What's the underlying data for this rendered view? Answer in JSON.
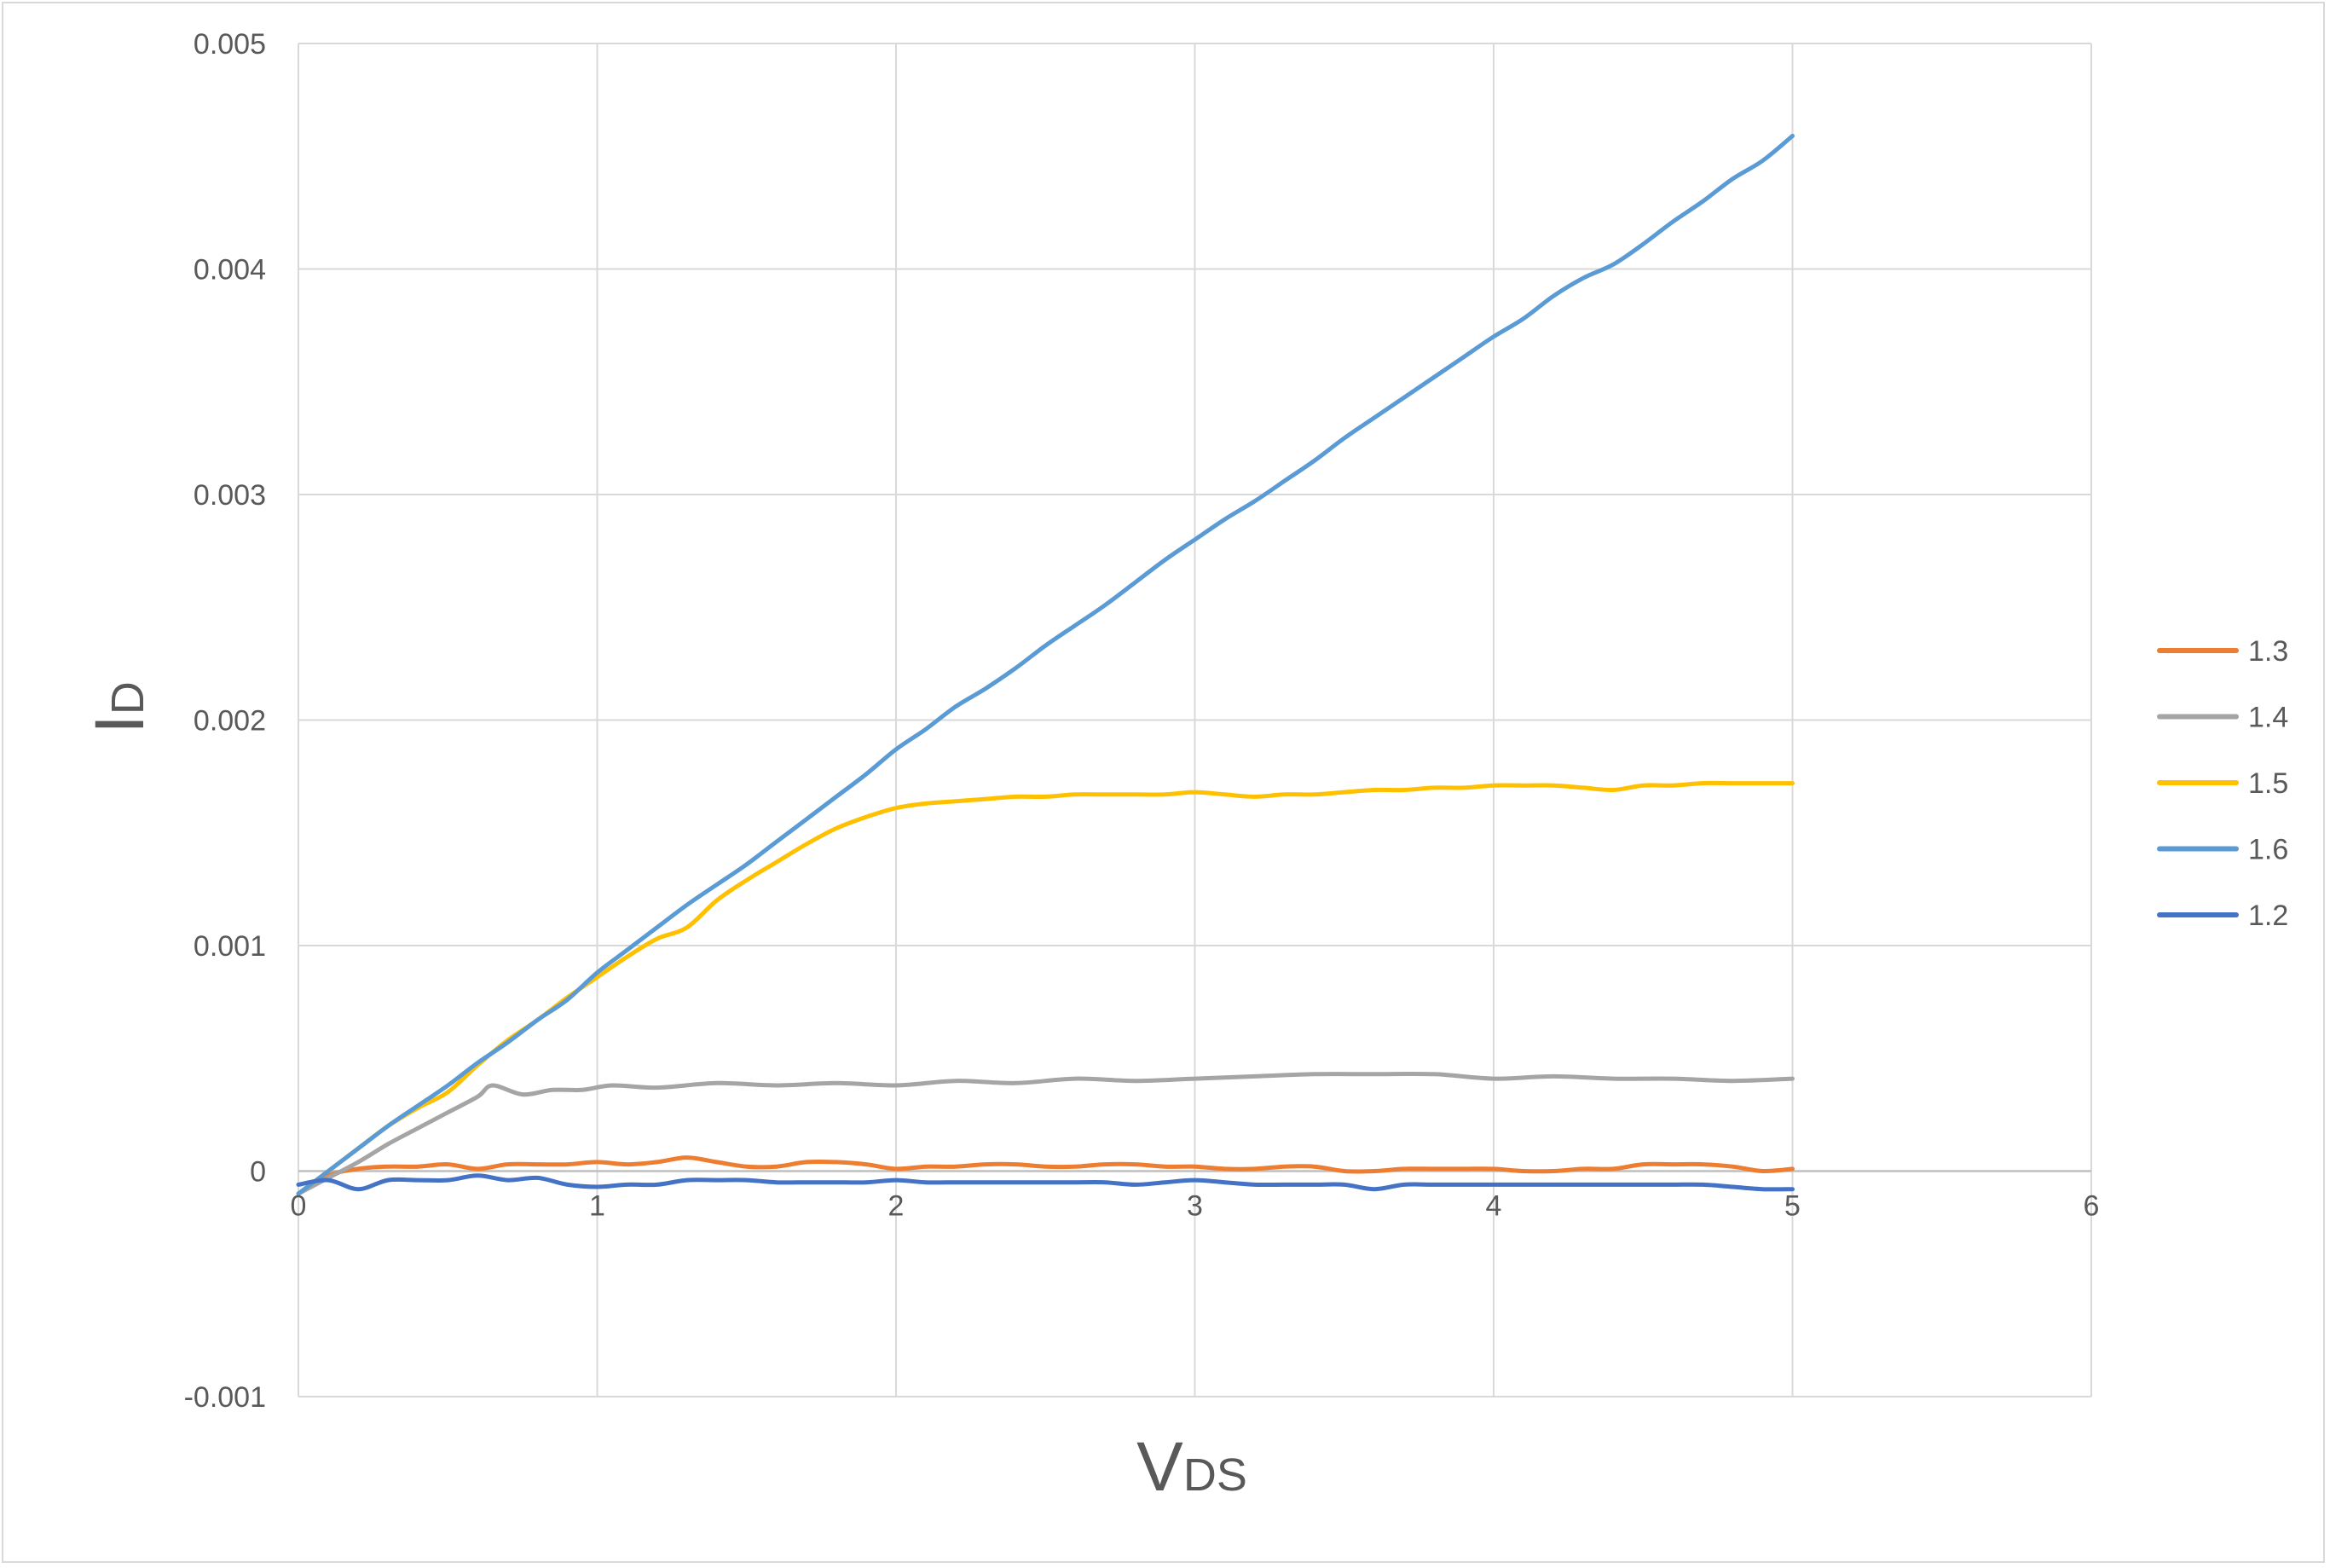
{
  "chart_data": {
    "type": "line",
    "title": "",
    "xlabel": {
      "main": "V",
      "sub": "DS"
    },
    "ylabel": {
      "main": "I",
      "sub": "D"
    },
    "xlim": [
      0,
      6
    ],
    "ylim": [
      -0.001,
      0.005
    ],
    "x_ticks": [
      "0",
      "1",
      "2",
      "3",
      "4",
      "5",
      "6"
    ],
    "y_ticks": [
      "-0.001",
      "0",
      "0.001",
      "0.002",
      "0.003",
      "0.004",
      "0.005"
    ],
    "grid": true,
    "legend_position": "right",
    "series": [
      {
        "name": "1.3",
        "color": "#ED7D31",
        "x": [
          0,
          0.1,
          0.2,
          0.3,
          0.4,
          0.5,
          0.6,
          0.7,
          0.8,
          0.9,
          1.0,
          1.1,
          1.2,
          1.3,
          1.4,
          1.5,
          1.6,
          1.7,
          1.8,
          1.9,
          2.0,
          2.1,
          2.2,
          2.3,
          2.4,
          2.5,
          2.6,
          2.7,
          2.8,
          2.9,
          3.0,
          3.1,
          3.2,
          3.3,
          3.4,
          3.5,
          3.6,
          3.7,
          3.8,
          3.9,
          4.0,
          4.1,
          4.2,
          4.3,
          4.4,
          4.5,
          4.6,
          4.7,
          4.8,
          4.9,
          5.0
        ],
        "y": [
          -0.0001,
          -2e-05,
          1e-05,
          2e-05,
          2e-05,
          3e-05,
          1e-05,
          3e-05,
          3e-05,
          3e-05,
          4e-05,
          3e-05,
          4e-05,
          6e-05,
          4e-05,
          2e-05,
          2e-05,
          4e-05,
          4e-05,
          3e-05,
          1e-05,
          2e-05,
          2e-05,
          3e-05,
          3e-05,
          2e-05,
          2e-05,
          3e-05,
          3e-05,
          2e-05,
          2e-05,
          1e-05,
          1e-05,
          2e-05,
          2e-05,
          0.0,
          0.0,
          1e-05,
          1e-05,
          1e-05,
          1e-05,
          0.0,
          0.0,
          1e-05,
          1e-05,
          3e-05,
          3e-05,
          3e-05,
          2e-05,
          0.0,
          1e-05
        ]
      },
      {
        "name": "1.4",
        "color": "#A5A5A5",
        "x": [
          0,
          0.1,
          0.2,
          0.3,
          0.4,
          0.5,
          0.6,
          0.65,
          0.75,
          0.85,
          0.95,
          1.05,
          1.2,
          1.4,
          1.6,
          1.8,
          2.0,
          2.2,
          2.4,
          2.6,
          2.8,
          3.0,
          3.2,
          3.4,
          3.6,
          3.8,
          4.0,
          4.2,
          4.4,
          4.6,
          4.8,
          5.0
        ],
        "y": [
          -0.0001,
          -3e-05,
          4e-05,
          0.00012,
          0.00019,
          0.00026,
          0.00033,
          0.00038,
          0.00034,
          0.00036,
          0.00036,
          0.00038,
          0.00037,
          0.00039,
          0.00038,
          0.00039,
          0.00038,
          0.0004,
          0.00039,
          0.00041,
          0.0004,
          0.00041,
          0.00042,
          0.00043,
          0.00043,
          0.00043,
          0.00041,
          0.00042,
          0.00041,
          0.00041,
          0.0004,
          0.00041
        ]
      },
      {
        "name": "1.5",
        "color": "#FFC000",
        "x": [
          0,
          0.1,
          0.2,
          0.3,
          0.4,
          0.5,
          0.6,
          0.7,
          0.8,
          0.9,
          1.0,
          1.1,
          1.2,
          1.3,
          1.4,
          1.5,
          1.6,
          1.7,
          1.8,
          1.9,
          2.0,
          2.1,
          2.2,
          2.3,
          2.4,
          2.5,
          2.6,
          2.7,
          2.8,
          2.9,
          3.0,
          3.1,
          3.2,
          3.3,
          3.4,
          3.5,
          3.6,
          3.7,
          3.8,
          3.9,
          4.0,
          4.1,
          4.2,
          4.3,
          4.4,
          4.5,
          4.6,
          4.7,
          4.8,
          4.9,
          5.0
        ],
        "y": [
          -0.0001,
          0.0,
          0.0001,
          0.0002,
          0.00028,
          0.00035,
          0.00047,
          0.00058,
          0.00067,
          0.00077,
          0.00086,
          0.00095,
          0.00103,
          0.00108,
          0.0012,
          0.00129,
          0.00137,
          0.00145,
          0.00152,
          0.00157,
          0.00161,
          0.00163,
          0.00164,
          0.00165,
          0.00166,
          0.00166,
          0.00167,
          0.00167,
          0.00167,
          0.00167,
          0.00168,
          0.00167,
          0.00166,
          0.00167,
          0.00167,
          0.00168,
          0.00169,
          0.00169,
          0.0017,
          0.0017,
          0.00171,
          0.00171,
          0.00171,
          0.0017,
          0.00169,
          0.00171,
          0.00171,
          0.00172,
          0.00172,
          0.00172,
          0.00172
        ]
      },
      {
        "name": "1.6",
        "color": "#5B9BD5",
        "x": [
          0,
          0.1,
          0.2,
          0.3,
          0.4,
          0.5,
          0.6,
          0.7,
          0.8,
          0.9,
          1.0,
          1.1,
          1.2,
          1.3,
          1.4,
          1.5,
          1.6,
          1.7,
          1.8,
          1.9,
          2.0,
          2.1,
          2.2,
          2.3,
          2.4,
          2.5,
          2.6,
          2.7,
          2.8,
          2.9,
          3.0,
          3.1,
          3.2,
          3.3,
          3.4,
          3.5,
          3.6,
          3.7,
          3.8,
          3.9,
          4.0,
          4.1,
          4.2,
          4.3,
          4.4,
          4.5,
          4.6,
          4.7,
          4.8,
          4.9,
          5.0
        ],
        "y": [
          -0.0001,
          0.0,
          0.0001,
          0.0002,
          0.00029,
          0.00038,
          0.00048,
          0.00057,
          0.00067,
          0.00076,
          0.00088,
          0.00098,
          0.00108,
          0.00118,
          0.00127,
          0.00136,
          0.00146,
          0.00156,
          0.00166,
          0.00176,
          0.00187,
          0.00196,
          0.00206,
          0.00214,
          0.00223,
          0.00233,
          0.00242,
          0.00251,
          0.00261,
          0.00271,
          0.0028,
          0.00289,
          0.00297,
          0.00306,
          0.00315,
          0.00325,
          0.00334,
          0.00343,
          0.00352,
          0.00361,
          0.0037,
          0.00378,
          0.00388,
          0.00396,
          0.00402,
          0.00411,
          0.00421,
          0.0043,
          0.0044,
          0.00448,
          0.00459
        ]
      },
      {
        "name": "1.2",
        "color": "#4472C4",
        "x": [
          0,
          0.1,
          0.2,
          0.3,
          0.4,
          0.5,
          0.6,
          0.7,
          0.8,
          0.9,
          1.0,
          1.1,
          1.2,
          1.3,
          1.4,
          1.5,
          1.6,
          1.7,
          1.8,
          1.9,
          2.0,
          2.1,
          2.2,
          2.3,
          2.4,
          2.5,
          2.6,
          2.7,
          2.8,
          2.9,
          3.0,
          3.1,
          3.2,
          3.3,
          3.4,
          3.5,
          3.6,
          3.7,
          3.8,
          3.9,
          4.0,
          4.1,
          4.2,
          4.3,
          4.4,
          4.5,
          4.6,
          4.7,
          4.8,
          4.9,
          5.0
        ],
        "y": [
          -6e-05,
          -4e-05,
          -8e-05,
          -4e-05,
          -4e-05,
          -4e-05,
          -2e-05,
          -4e-05,
          -3e-05,
          -6e-05,
          -7e-05,
          -6e-05,
          -6e-05,
          -4e-05,
          -4e-05,
          -4e-05,
          -5e-05,
          -5e-05,
          -5e-05,
          -5e-05,
          -4e-05,
          -5e-05,
          -5e-05,
          -5e-05,
          -5e-05,
          -5e-05,
          -5e-05,
          -5e-05,
          -6e-05,
          -5e-05,
          -4e-05,
          -5e-05,
          -6e-05,
          -6e-05,
          -6e-05,
          -6e-05,
          -8e-05,
          -6e-05,
          -6e-05,
          -6e-05,
          -6e-05,
          -6e-05,
          -6e-05,
          -6e-05,
          -6e-05,
          -6e-05,
          -6e-05,
          -6e-05,
          -7e-05,
          -8e-05,
          -8e-05
        ]
      }
    ]
  }
}
